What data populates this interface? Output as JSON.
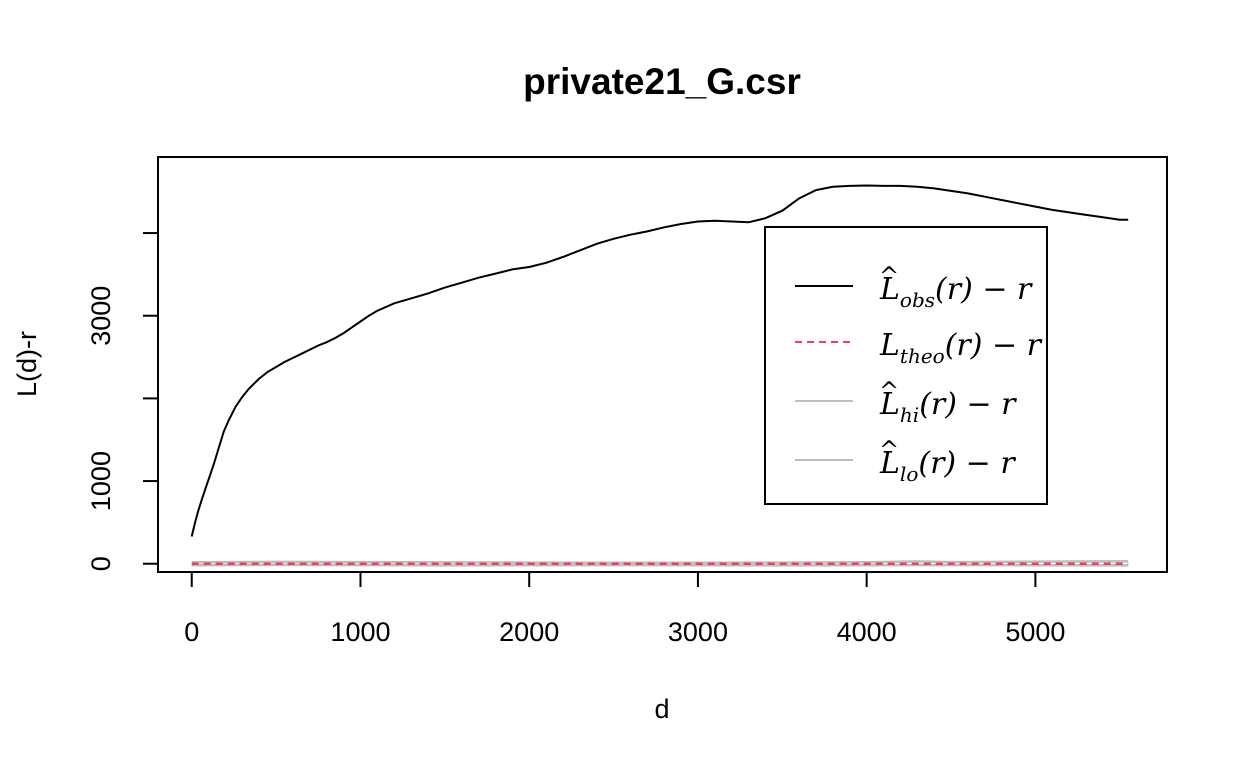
{
  "chart_data": {
    "type": "line",
    "title": "private21_G.csr",
    "xlabel": "d",
    "ylabel": "L(d)-r",
    "xlim": [
      -200,
      5780
    ],
    "ylim": [
      -100,
      4920
    ],
    "x_ticks": [
      0,
      1000,
      2000,
      3000,
      4000,
      5000
    ],
    "y_ticks": [
      0,
      1000,
      2000,
      3000,
      4000
    ],
    "y_tick_labels": [
      "0",
      "1000",
      "",
      "3000",
      ""
    ],
    "legend_position": "right",
    "series": [
      {
        "name": "obs",
        "color": "#000000",
        "dash": "solid",
        "legend": {
          "main": "L",
          "hat": "^",
          "sub": "obs",
          "suffix": "(r) − r"
        },
        "x": [
          0,
          20,
          40,
          60,
          80,
          100,
          130,
          160,
          190,
          220,
          260,
          300,
          340,
          400,
          450,
          500,
          550,
          600,
          650,
          700,
          750,
          800,
          850,
          900,
          950,
          1000,
          1050,
          1100,
          1200,
          1300,
          1400,
          1500,
          1600,
          1700,
          1800,
          1900,
          2000,
          2100,
          2200,
          2300,
          2400,
          2500,
          2600,
          2700,
          2800,
          2900,
          3000,
          3100,
          3200,
          3300,
          3400,
          3500,
          3600,
          3700,
          3800,
          3900,
          4000,
          4100,
          4200,
          4300,
          4400,
          4500,
          4600,
          4700,
          4800,
          4900,
          5000,
          5100,
          5200,
          5300,
          5400,
          5500,
          5550
        ],
        "y": [
          330,
          500,
          650,
          780,
          900,
          1020,
          1200,
          1400,
          1600,
          1740,
          1900,
          2020,
          2120,
          2240,
          2320,
          2380,
          2440,
          2490,
          2540,
          2590,
          2640,
          2680,
          2730,
          2790,
          2860,
          2930,
          3000,
          3060,
          3150,
          3210,
          3270,
          3340,
          3400,
          3460,
          3510,
          3560,
          3590,
          3640,
          3710,
          3790,
          3870,
          3930,
          3980,
          4020,
          4070,
          4110,
          4140,
          4150,
          4140,
          4130,
          4180,
          4270,
          4420,
          4520,
          4560,
          4570,
          4575,
          4570,
          4570,
          4560,
          4540,
          4510,
          4480,
          4440,
          4400,
          4360,
          4320,
          4280,
          4250,
          4220,
          4190,
          4160,
          4160
        ]
      },
      {
        "name": "theo",
        "color": "#ea4063",
        "dash": "dashed",
        "legend": {
          "main": "L",
          "hat": "",
          "sub": "theo",
          "suffix": "(r) − r"
        },
        "x": [
          0,
          5550
        ],
        "y": [
          0,
          0
        ]
      },
      {
        "name": "hi",
        "color": "#bebebe",
        "dash": "solid",
        "legend": {
          "main": "L",
          "hat": "^",
          "sub": "hi",
          "suffix": "(r) − r"
        },
        "x": [
          0,
          500,
          1000,
          1500,
          2000,
          2500,
          3000,
          3500,
          4000,
          4300,
          4500,
          5000,
          5550
        ],
        "y": [
          18,
          22,
          20,
          16,
          14,
          12,
          12,
          14,
          18,
          28,
          20,
          26,
          30
        ]
      },
      {
        "name": "lo",
        "color": "#bebebe",
        "dash": "solid",
        "legend": {
          "main": "L",
          "hat": "^",
          "sub": "lo",
          "suffix": "(r) − r"
        },
        "x": [
          0,
          500,
          1000,
          1500,
          2000,
          2500,
          3000,
          3500,
          4000,
          4500,
          5000,
          5550
        ],
        "y": [
          -18,
          -14,
          -16,
          -20,
          -18,
          -16,
          -18,
          -20,
          -18,
          -16,
          -18,
          -20
        ]
      }
    ]
  }
}
